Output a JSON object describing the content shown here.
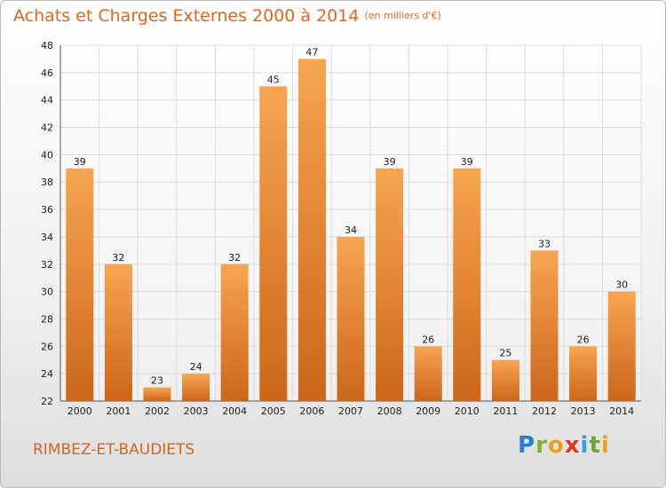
{
  "header": {
    "title": "Achats et Charges Externes 2000 à 2014",
    "subtitle": "(en milliers d'€)"
  },
  "footer": {
    "place": "RIMBEZ-ET-BAUDIETS",
    "logo": "Proxiti"
  },
  "colors": {
    "bar_top": "#f7a550",
    "bar_bottom": "#cc6618",
    "text_accent": "#e0671c",
    "grid": "#dddddd"
  },
  "chart_data": {
    "type": "bar",
    "categories": [
      "2000",
      "2001",
      "2002",
      "2003",
      "2004",
      "2005",
      "2006",
      "2007",
      "2008",
      "2009",
      "2010",
      "2011",
      "2012",
      "2013",
      "2014"
    ],
    "values": [
      39,
      32,
      23,
      24,
      32,
      45,
      47,
      34,
      39,
      26,
      39,
      25,
      33,
      26,
      30
    ],
    "ylim": [
      22,
      48
    ],
    "yticks": [
      22,
      24,
      26,
      28,
      30,
      32,
      34,
      36,
      38,
      40,
      42,
      44,
      46,
      48
    ],
    "grid": true,
    "legend": "none"
  }
}
